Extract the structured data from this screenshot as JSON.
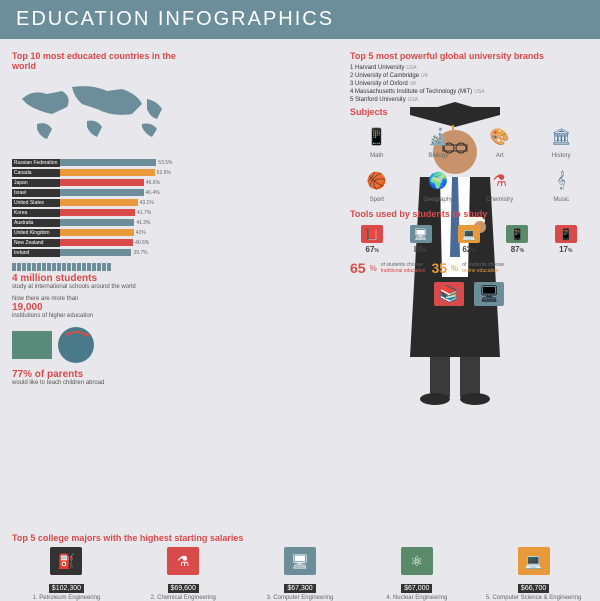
{
  "header": {
    "title": "EDUCATION INFOGRAPHICS"
  },
  "countries_section": {
    "title": "Top 10 most educated countries in the world",
    "bars": [
      {
        "label": "Russian Federation",
        "value": 53.5,
        "color": "#6b8e9a"
      },
      {
        "label": "Canada",
        "value": 52.6,
        "color": "#e89a3a"
      },
      {
        "label": "Japan",
        "value": 46.6,
        "color": "#d94a4a"
      },
      {
        "label": "Israel",
        "value": 46.4,
        "color": "#6b8e9a"
      },
      {
        "label": "United States",
        "value": 43.1,
        "color": "#e89a3a"
      },
      {
        "label": "Korea",
        "value": 41.7,
        "color": "#d94a4a"
      },
      {
        "label": "Australia",
        "value": 41.3,
        "color": "#6b8e9a"
      },
      {
        "label": "United Kingdom",
        "value": 41.0,
        "color": "#e89a3a"
      },
      {
        "label": "New Zealand",
        "value": 40.6,
        "color": "#d94a4a"
      },
      {
        "label": "Ireland",
        "value": 39.7,
        "color": "#6b8e9a"
      }
    ]
  },
  "stats": {
    "students_num": "4 million students",
    "students_text": "study at international schools around the world",
    "institutions_intro": "Now there are more than",
    "institutions_num": "19,000",
    "institutions_text": "institutions of higher education",
    "parents_pct": "77% of parents",
    "parents_text": "would like to teach children abroad"
  },
  "universities": {
    "title": "Top 5 most powerful global university brands",
    "items": [
      {
        "rank": "1",
        "name": "Harvard University",
        "country": "USA"
      },
      {
        "rank": "2",
        "name": "University of Cambridge",
        "country": "UK"
      },
      {
        "rank": "3",
        "name": "University of Oxford",
        "country": "UK"
      },
      {
        "rank": "4",
        "name": "Massachusetts Institute of Technology (MIT)",
        "country": "USA"
      },
      {
        "rank": "5",
        "name": "Stanford University",
        "country": "USA"
      }
    ]
  },
  "subjects": {
    "title": "Subjects",
    "items": [
      {
        "label": "Math",
        "color": "#6b8e9a",
        "glyph": "📱"
      },
      {
        "label": "Biology",
        "color": "#5a8a6a",
        "glyph": "🔬"
      },
      {
        "label": "Art",
        "color": "#d94a4a",
        "glyph": "🎨"
      },
      {
        "label": "History",
        "color": "#4a7a9a",
        "glyph": "🏛"
      },
      {
        "label": "Sport",
        "color": "#e89a3a",
        "glyph": "🏀"
      },
      {
        "label": "Geography",
        "color": "#5a8a6a",
        "glyph": "🌍"
      },
      {
        "label": "Chemistry",
        "color": "#d94a4a",
        "glyph": "⚗"
      },
      {
        "label": "Music",
        "color": "#6b8e9a",
        "glyph": "𝄞"
      }
    ]
  },
  "tools": {
    "title": "Tools used by students to study",
    "items": [
      {
        "pct": "67",
        "color": "#d94a4a",
        "glyph": "📕"
      },
      {
        "pct": "80",
        "color": "#6b8e9a",
        "glyph": "🖥"
      },
      {
        "pct": "62",
        "color": "#e89a3a",
        "glyph": "💻"
      },
      {
        "pct": "87",
        "color": "#5a8a6a",
        "glyph": "📱"
      },
      {
        "pct": "17",
        "color": "#d94a4a",
        "glyph": "📱"
      }
    ]
  },
  "choices": {
    "traditional": {
      "pct": "65",
      "text1": "of students choose",
      "text2": "traditional education",
      "color": "#d94a4a"
    },
    "online": {
      "pct": "35",
      "text1": "of students choose",
      "text2": "online education",
      "color": "#e89a3a"
    }
  },
  "majors": {
    "title": "Top 5 college majors with the highest starting salaries",
    "items": [
      {
        "salary": "$102,300",
        "label": "1. Petroleum Engineering",
        "color": "#333",
        "glyph": "⛽"
      },
      {
        "salary": "$69,600",
        "label": "2. Chemical Engineering",
        "color": "#d94a4a",
        "glyph": "⚗"
      },
      {
        "salary": "$67,300",
        "label": "3. Computer Engineering",
        "color": "#6b8e9a",
        "glyph": "🖥"
      },
      {
        "salary": "$67,000",
        "label": "4. Nuclear Engineering",
        "color": "#5a8a6a",
        "glyph": "⚛"
      },
      {
        "salary": "$66,700",
        "label": "5. Computer Science & Engineering",
        "color": "#e89a3a",
        "glyph": "💻"
      }
    ]
  },
  "colors": {
    "header_bg": "#6b8e9a",
    "accent": "#d94a4a",
    "bg": "#e8e8ec"
  }
}
